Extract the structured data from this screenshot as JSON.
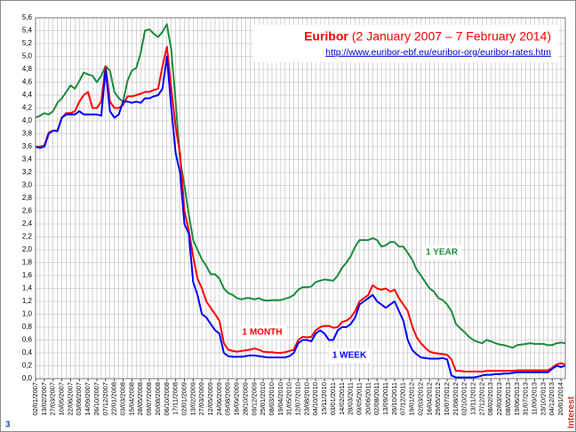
{
  "chart_data": {
    "type": "line",
    "title": "Euribor",
    "title_period": "(2 January 2007 – 7 February 2014)",
    "source_url": "http://www.euribor-ebf.eu/euribor-org/euribor-rates.htm",
    "corner_left": "3",
    "corner_right": "Interest",
    "grid": true,
    "ylim": [
      0,
      5.6
    ],
    "yticks": [
      {
        "value": 0,
        "label": "0,0"
      },
      {
        "value": 0.2,
        "label": "0,2"
      },
      {
        "value": 0.4,
        "label": "0,4"
      },
      {
        "value": 0.6,
        "label": "0,6"
      },
      {
        "value": 0.8,
        "label": "0,8"
      },
      {
        "value": 1.0,
        "label": "1,0"
      },
      {
        "value": 1.2,
        "label": "1,2"
      },
      {
        "value": 1.4,
        "label": "1,4"
      },
      {
        "value": 1.6,
        "label": "1,6"
      },
      {
        "value": 1.8,
        "label": "1,8"
      },
      {
        "value": 2.0,
        "label": "2,0"
      },
      {
        "value": 2.2,
        "label": "2,2"
      },
      {
        "value": 2.4,
        "label": "2,4"
      },
      {
        "value": 2.6,
        "label": "2,6"
      },
      {
        "value": 2.8,
        "label": "2,8"
      },
      {
        "value": 3.0,
        "label": "3,0"
      },
      {
        "value": 3.2,
        "label": "3,2"
      },
      {
        "value": 3.4,
        "label": "3,4"
      },
      {
        "value": 3.6,
        "label": "3,6"
      },
      {
        "value": 3.8,
        "label": "3,8"
      },
      {
        "value": 4.0,
        "label": "4,0"
      },
      {
        "value": 4.2,
        "label": "4,2"
      },
      {
        "value": 4.4,
        "label": "4,4"
      },
      {
        "value": 4.6,
        "label": "4,6"
      },
      {
        "value": 4.8,
        "label": "4,8"
      },
      {
        "value": 5.0,
        "label": "5,0"
      },
      {
        "value": 5.2,
        "label": "5,2"
      },
      {
        "value": 5.4,
        "label": "5,4"
      },
      {
        "value": 5.6,
        "label": "5,6"
      }
    ],
    "categories": [
      "02/01/2007",
      null,
      "13/02/2007",
      null,
      "27/03/2007",
      null,
      "10/05/2007",
      null,
      "22/06/2007",
      null,
      "03/08/2007",
      null,
      "14/09/2007",
      null,
      "26/10/2007",
      null,
      "07/12/2007",
      null,
      "22/01/2008",
      null,
      "03/03/2008",
      null,
      "15/04/2008",
      null,
      "28/05/2008",
      null,
      "09/07/2008",
      null,
      "20/08/2008",
      null,
      "06/10/2008",
      null,
      "17/11/2008",
      null,
      "02/01/2009",
      null,
      "13/02/2009",
      null,
      "27/03/2009",
      null,
      "12/05/2009",
      null,
      "24/06/2009",
      null,
      "05/08/2009",
      null,
      "16/09/2009",
      null,
      "28/10/2009",
      null,
      "09/12/2009",
      null,
      "25/01/2010",
      null,
      "08/03/2010",
      null,
      "19/04/2010",
      null,
      "31/05/2010",
      null,
      "12/07/2010",
      null,
      "23/08/2010",
      null,
      "04/10/2010",
      null,
      "15/11/2010",
      null,
      "03/01/2011",
      null,
      "14/02/2011",
      null,
      "28/03/2011",
      null,
      "09/05/2011",
      null,
      "20/06/2011",
      null,
      "02/08/2011",
      null,
      "13/09/2011",
      null,
      "26/10/2011",
      null,
      "07/12/2011",
      null,
      "19/01/2012",
      null,
      "02/03/2012",
      null,
      "16/04/2012",
      null,
      "29/05/2012",
      null,
      "10/07/2012",
      null,
      "21/08/2012",
      null,
      "02/10/2012",
      null,
      "13/11/2012",
      null,
      "27/12/2012",
      null,
      "08/02/2013",
      null,
      "22/03/2013",
      null,
      "08/05/2013",
      null,
      "19/06/2013",
      null,
      "31/07/2013",
      null,
      "11/09/2013",
      null,
      "23/10/2013",
      null,
      "04/12/2013",
      null,
      "20/01/2014",
      null
    ],
    "series": [
      {
        "name": "1 YEAR",
        "color": "#1e8a3c",
        "label_at": 107,
        "label_value": 2.0,
        "values": [
          4.05,
          4.08,
          4.12,
          4.1,
          4.15,
          4.28,
          4.35,
          4.45,
          4.55,
          4.5,
          4.62,
          4.75,
          4.72,
          4.7,
          4.6,
          4.7,
          4.85,
          4.78,
          4.45,
          4.35,
          4.3,
          4.62,
          4.78,
          4.82,
          5.05,
          5.4,
          5.42,
          5.35,
          5.3,
          5.38,
          5.5,
          5.1,
          4.3,
          3.4,
          3.0,
          2.55,
          2.15,
          2.0,
          1.85,
          1.75,
          1.62,
          1.62,
          1.55,
          1.4,
          1.33,
          1.3,
          1.25,
          1.23,
          1.25,
          1.25,
          1.23,
          1.25,
          1.22,
          1.21,
          1.22,
          1.22,
          1.22,
          1.24,
          1.26,
          1.3,
          1.38,
          1.42,
          1.42,
          1.43,
          1.5,
          1.52,
          1.54,
          1.53,
          1.52,
          1.6,
          1.72,
          1.8,
          1.9,
          2.05,
          2.15,
          2.15,
          2.15,
          2.18,
          2.15,
          2.05,
          2.07,
          2.12,
          2.12,
          2.05,
          2.05,
          1.95,
          1.85,
          1.7,
          1.6,
          1.5,
          1.4,
          1.35,
          1.25,
          1.22,
          1.15,
          1.05,
          0.85,
          0.78,
          0.72,
          0.65,
          0.6,
          0.57,
          0.55,
          0.6,
          0.58,
          0.55,
          0.53,
          0.52,
          0.5,
          0.48,
          0.52,
          0.53,
          0.54,
          0.55,
          0.54,
          0.54,
          0.54,
          0.52,
          0.52,
          0.55,
          0.56,
          0.55
        ]
      },
      {
        "name": "1 MONTH",
        "color": "#ff0000",
        "values": [
          3.6,
          3.6,
          3.62,
          3.82,
          3.85,
          3.85,
          4.05,
          4.12,
          4.12,
          4.15,
          4.3,
          4.4,
          4.45,
          4.2,
          4.2,
          4.3,
          4.85,
          4.3,
          4.2,
          4.2,
          4.25,
          4.38,
          4.38,
          4.4,
          4.42,
          4.45,
          4.45,
          4.48,
          4.5,
          4.85,
          5.15,
          4.5,
          3.9,
          3.5,
          2.6,
          2.3,
          1.9,
          1.55,
          1.4,
          1.2,
          1.1,
          1.0,
          0.9,
          0.55,
          0.45,
          0.43,
          0.42,
          0.43,
          0.44,
          0.45,
          0.47,
          0.45,
          0.42,
          0.41,
          0.41,
          0.4,
          0.4,
          0.41,
          0.43,
          0.45,
          0.6,
          0.65,
          0.64,
          0.65,
          0.75,
          0.8,
          0.82,
          0.82,
          0.79,
          0.8,
          0.88,
          0.9,
          0.95,
          1.05,
          1.2,
          1.25,
          1.3,
          1.45,
          1.4,
          1.38,
          1.4,
          1.35,
          1.38,
          1.25,
          1.15,
          1.05,
          0.82,
          0.65,
          0.55,
          0.48,
          0.42,
          0.4,
          0.39,
          0.38,
          0.37,
          0.3,
          0.12,
          0.12,
          0.11,
          0.11,
          0.11,
          0.11,
          0.11,
          0.12,
          0.12,
          0.12,
          0.12,
          0.12,
          0.12,
          0.12,
          0.13,
          0.13,
          0.13,
          0.13,
          0.13,
          0.13,
          0.13,
          0.13,
          0.17,
          0.22,
          0.24,
          0.22
        ]
      },
      {
        "name": "1 WEEK",
        "color": "#0000ff",
        "values": [
          3.6,
          3.58,
          3.6,
          3.8,
          3.85,
          3.84,
          4.05,
          4.1,
          4.1,
          4.1,
          4.15,
          4.1,
          4.1,
          4.1,
          4.1,
          4.08,
          4.8,
          4.15,
          4.05,
          4.1,
          4.3,
          4.3,
          4.28,
          4.3,
          4.28,
          4.35,
          4.35,
          4.38,
          4.4,
          4.5,
          5.0,
          4.2,
          3.5,
          3.2,
          2.4,
          2.25,
          1.5,
          1.3,
          1.0,
          0.95,
          0.85,
          0.75,
          0.7,
          0.4,
          0.35,
          0.34,
          0.34,
          0.34,
          0.35,
          0.36,
          0.36,
          0.35,
          0.34,
          0.33,
          0.33,
          0.33,
          0.33,
          0.33,
          0.35,
          0.4,
          0.55,
          0.6,
          0.6,
          0.58,
          0.7,
          0.75,
          0.7,
          0.6,
          0.6,
          0.75,
          0.8,
          0.8,
          0.85,
          0.95,
          1.15,
          1.2,
          1.25,
          1.3,
          1.2,
          1.15,
          1.1,
          1.15,
          1.2,
          1.05,
          0.9,
          0.6,
          0.45,
          0.38,
          0.33,
          0.32,
          0.31,
          0.31,
          0.31,
          0.32,
          0.3,
          0.05,
          0.02,
          0.02,
          0.02,
          0.02,
          0.02,
          0.03,
          0.05,
          0.06,
          0.06,
          0.07,
          0.07,
          0.08,
          0.08,
          0.09,
          0.1,
          0.1,
          0.1,
          0.1,
          0.1,
          0.1,
          0.1,
          0.1,
          0.15,
          0.2,
          0.18,
          0.2
        ]
      }
    ]
  }
}
